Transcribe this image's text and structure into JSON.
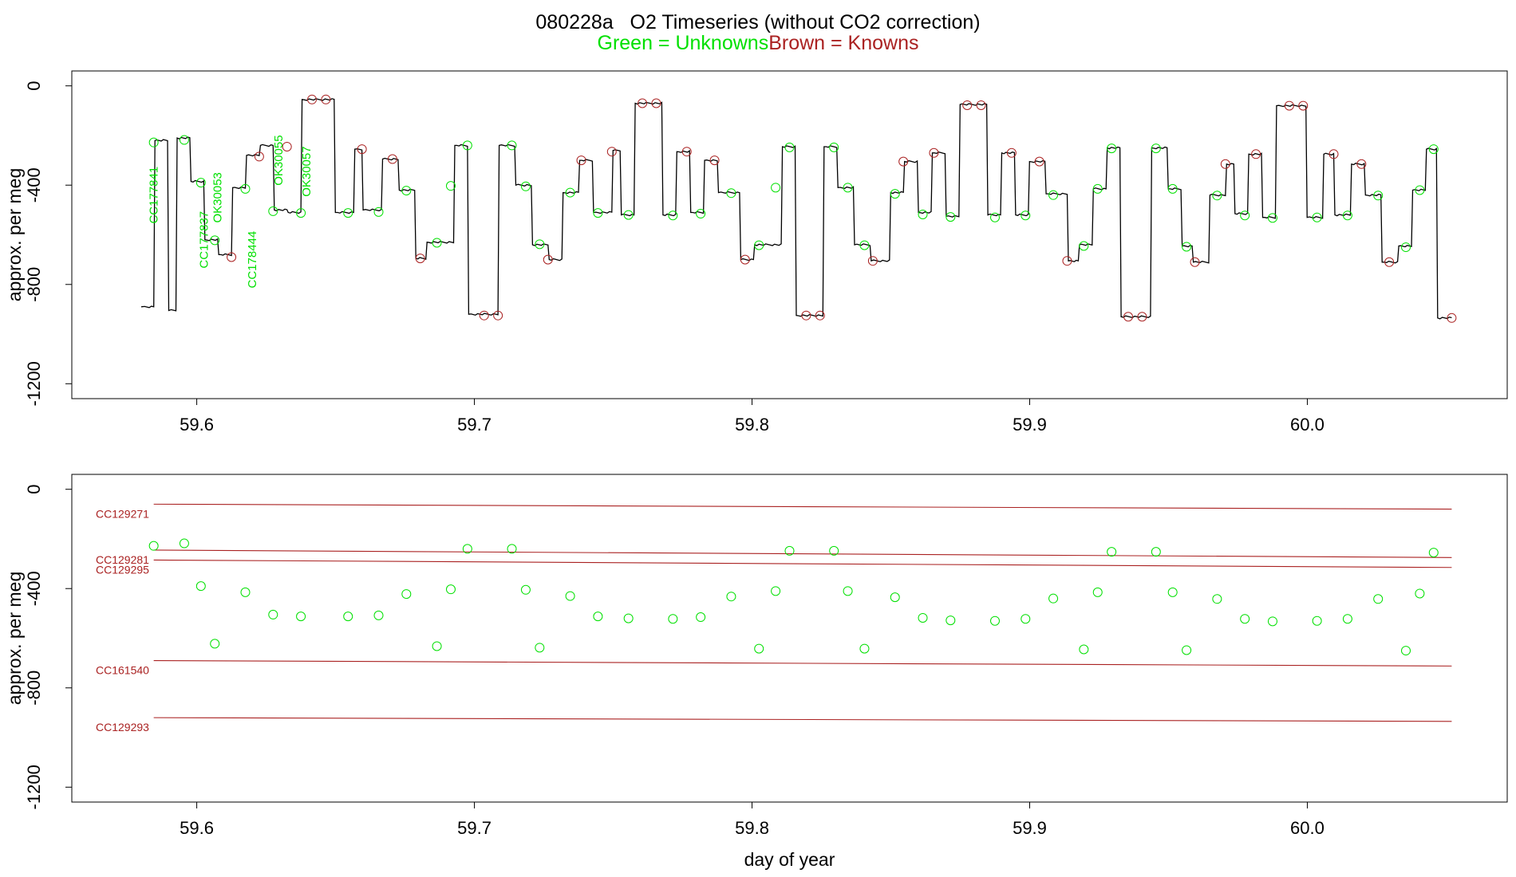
{
  "title": "080228a   O2 Timeseries (without CO2 correction)",
  "subtitle_green": "Green = Unknowns",
  "subtitle_brown": "Brown = Knowns",
  "colors": {
    "unknown": "#00e000",
    "known": "#aa2222",
    "trace": "#000000"
  },
  "chart_data": [
    {
      "type": "line",
      "name": "top-panel",
      "xlabel": "",
      "ylabel": "approx. per meg",
      "xlim": [
        59.555,
        60.072
      ],
      "ylim": [
        -1260,
        60
      ],
      "x_ticks": [
        59.6,
        59.7,
        59.8,
        59.9,
        60.0
      ],
      "x_tick_labels": [
        "59.6",
        "59.7",
        "59.8",
        "59.9",
        "60.0"
      ],
      "y_ticks": [
        0,
        -400,
        -800,
        -1200
      ],
      "y_tick_labels": [
        "0",
        "-400",
        "-800",
        "-1200"
      ],
      "trace_steps": [
        [
          59.58,
          59.5845,
          -890
        ],
        [
          59.5845,
          59.5895,
          -220
        ],
        [
          59.5895,
          59.5925,
          -905
        ],
        [
          59.5925,
          59.5975,
          -210
        ],
        [
          59.5975,
          59.6025,
          -385
        ],
        [
          59.6025,
          59.6075,
          -620
        ],
        [
          59.6075,
          59.6125,
          -680
        ],
        [
          59.6125,
          59.6175,
          -410
        ],
        [
          59.6175,
          59.6225,
          -280
        ],
        [
          59.6225,
          59.6275,
          -240
        ],
        [
          59.6275,
          59.6325,
          -500
        ],
        [
          59.6325,
          59.6375,
          -510
        ],
        [
          59.6375,
          59.6495,
          -55
        ],
        [
          59.6495,
          59.6565,
          -510
        ],
        [
          59.6565,
          59.6595,
          -255
        ],
        [
          59.6595,
          59.6665,
          -500
        ],
        [
          59.6665,
          59.6725,
          -295
        ],
        [
          59.6725,
          59.6785,
          -420
        ],
        [
          59.6785,
          59.6825,
          -695
        ],
        [
          59.6825,
          59.6925,
          -630
        ],
        [
          59.6925,
          59.6975,
          -240
        ],
        [
          59.6975,
          59.7085,
          -920
        ],
        [
          59.7085,
          59.7145,
          -240
        ],
        [
          59.7145,
          59.7205,
          -400
        ],
        [
          59.7205,
          59.7265,
          -640
        ],
        [
          59.7265,
          59.7315,
          -700
        ],
        [
          59.7315,
          59.7375,
          -430
        ],
        [
          59.7375,
          59.7425,
          -300
        ],
        [
          59.7425,
          59.7495,
          -510
        ],
        [
          59.7495,
          59.7525,
          -260
        ],
        [
          59.7525,
          59.7575,
          -520
        ],
        [
          59.7575,
          59.7675,
          -70
        ],
        [
          59.7675,
          59.7725,
          -520
        ],
        [
          59.7725,
          59.7775,
          -265
        ],
        [
          59.7775,
          59.7825,
          -510
        ],
        [
          59.7825,
          59.7875,
          -300
        ],
        [
          59.7875,
          59.7955,
          -430
        ],
        [
          59.7955,
          59.8005,
          -700
        ],
        [
          59.8005,
          59.8105,
          -640
        ],
        [
          59.8105,
          59.8155,
          -245
        ],
        [
          59.8155,
          59.8255,
          -925
        ],
        [
          59.8255,
          59.8305,
          -245
        ],
        [
          59.8305,
          59.8365,
          -410
        ],
        [
          59.8365,
          59.8425,
          -640
        ],
        [
          59.8425,
          59.8495,
          -705
        ],
        [
          59.8495,
          59.8545,
          -430
        ],
        [
          59.8545,
          59.8595,
          -305
        ],
        [
          59.8595,
          59.8645,
          -510
        ],
        [
          59.8645,
          59.8695,
          -270
        ],
        [
          59.8695,
          59.8745,
          -525
        ],
        [
          59.8745,
          59.8845,
          -75
        ],
        [
          59.8845,
          59.8895,
          -520
        ],
        [
          59.8895,
          59.8945,
          -270
        ],
        [
          59.8945,
          59.8995,
          -520
        ],
        [
          59.8995,
          59.9055,
          -305
        ],
        [
          59.9055,
          59.9135,
          -435
        ],
        [
          59.9135,
          59.9175,
          -705
        ],
        [
          59.9175,
          59.9225,
          -640
        ],
        [
          59.9225,
          59.9275,
          -415
        ],
        [
          59.9275,
          59.9325,
          -250
        ],
        [
          59.9325,
          59.9435,
          -930
        ],
        [
          59.9435,
          59.9495,
          -250
        ],
        [
          59.9495,
          59.9545,
          -415
        ],
        [
          59.9545,
          59.9585,
          -645
        ],
        [
          59.9585,
          59.9645,
          -710
        ],
        [
          59.9645,
          59.9705,
          -440
        ],
        [
          59.9705,
          59.9735,
          -315
        ],
        [
          59.9735,
          59.9785,
          -515
        ],
        [
          59.9785,
          59.9835,
          -275
        ],
        [
          59.9835,
          59.9885,
          -530
        ],
        [
          59.9885,
          59.9995,
          -80
        ],
        [
          59.9995,
          60.0055,
          -530
        ],
        [
          60.0055,
          60.0095,
          -275
        ],
        [
          60.0095,
          60.0155,
          -520
        ],
        [
          60.0155,
          60.0205,
          -315
        ],
        [
          60.0205,
          60.0265,
          -440
        ],
        [
          60.0265,
          60.0325,
          -710
        ],
        [
          60.0325,
          60.0375,
          -645
        ],
        [
          60.0375,
          60.0425,
          -420
        ],
        [
          60.0425,
          60.0465,
          -255
        ],
        [
          60.0465,
          60.052,
          -935
        ]
      ],
      "unknown_points": [
        [
          59.5845,
          -228
        ],
        [
          59.5955,
          -218
        ],
        [
          59.6015,
          -390
        ],
        [
          59.6065,
          -622
        ],
        [
          59.6175,
          -415
        ],
        [
          59.6275,
          -505
        ],
        [
          59.6375,
          -512
        ],
        [
          59.6545,
          -512
        ],
        [
          59.6655,
          -508
        ],
        [
          59.6755,
          -422
        ],
        [
          59.6865,
          -632
        ],
        [
          59.6915,
          -403
        ],
        [
          59.6975,
          -240
        ],
        [
          59.7135,
          -240
        ],
        [
          59.7185,
          -405
        ],
        [
          59.7235,
          -638
        ],
        [
          59.7345,
          -430
        ],
        [
          59.7445,
          -512
        ],
        [
          59.7555,
          -520
        ],
        [
          59.7715,
          -522
        ],
        [
          59.7815,
          -515
        ],
        [
          59.7925,
          -432
        ],
        [
          59.8025,
          -642
        ],
        [
          59.8085,
          -410
        ],
        [
          59.8135,
          -248
        ],
        [
          59.8295,
          -248
        ],
        [
          59.8345,
          -410
        ],
        [
          59.8405,
          -642
        ],
        [
          59.8515,
          -435
        ],
        [
          59.8615,
          -518
        ],
        [
          59.8715,
          -528
        ],
        [
          59.8875,
          -530
        ],
        [
          59.8985,
          -522
        ],
        [
          59.9085,
          -440
        ],
        [
          59.9195,
          -645
        ],
        [
          59.9245,
          -415
        ],
        [
          59.9295,
          -252
        ],
        [
          59.9455,
          -252
        ],
        [
          59.9515,
          -415
        ],
        [
          59.9565,
          -648
        ],
        [
          59.9675,
          -442
        ],
        [
          59.9775,
          -522
        ],
        [
          59.9875,
          -532
        ],
        [
          60.0035,
          -530
        ],
        [
          60.0145,
          -522
        ],
        [
          60.0255,
          -442
        ],
        [
          60.0355,
          -650
        ],
        [
          60.0405,
          -420
        ],
        [
          60.0455,
          -255
        ]
      ],
      "known_points": [
        [
          59.6125,
          -690
        ],
        [
          59.6225,
          -285
        ],
        [
          59.6325,
          -245
        ],
        [
          59.6415,
          -55
        ],
        [
          59.6465,
          -55
        ],
        [
          59.6595,
          -255
        ],
        [
          59.6705,
          -295
        ],
        [
          59.6805,
          -695
        ],
        [
          59.7035,
          -925
        ],
        [
          59.7085,
          -925
        ],
        [
          59.7265,
          -700
        ],
        [
          59.7385,
          -300
        ],
        [
          59.7495,
          -265
        ],
        [
          59.7605,
          -70
        ],
        [
          59.7655,
          -70
        ],
        [
          59.7765,
          -265
        ],
        [
          59.7865,
          -300
        ],
        [
          59.7975,
          -700
        ],
        [
          59.8195,
          -925
        ],
        [
          59.8245,
          -925
        ],
        [
          59.8435,
          -705
        ],
        [
          59.8545,
          -305
        ],
        [
          59.8655,
          -270
        ],
        [
          59.8775,
          -78
        ],
        [
          59.8825,
          -78
        ],
        [
          59.8935,
          -270
        ],
        [
          59.9035,
          -305
        ],
        [
          59.9135,
          -705
        ],
        [
          59.9355,
          -930
        ],
        [
          59.9405,
          -930
        ],
        [
          59.9595,
          -710
        ],
        [
          59.9705,
          -315
        ],
        [
          59.9815,
          -275
        ],
        [
          59.9935,
          -80
        ],
        [
          59.9985,
          -80
        ],
        [
          60.0095,
          -275
        ],
        [
          60.0195,
          -315
        ],
        [
          60.0295,
          -710
        ],
        [
          60.052,
          -935
        ]
      ],
      "annotations": [
        {
          "label": "CC177841",
          "x": 59.5845,
          "y": -440
        },
        {
          "label": "CC177837",
          "x": 59.6025,
          "y": -620
        },
        {
          "label": "OK30053",
          "x": 59.6075,
          "y": -450
        },
        {
          "label": "CC178444",
          "x": 59.62,
          "y": -700
        },
        {
          "label": "OK30055",
          "x": 59.6295,
          "y": -300
        },
        {
          "label": "OK30057",
          "x": 59.6395,
          "y": -345
        }
      ]
    },
    {
      "type": "scatter",
      "name": "bottom-panel",
      "xlabel": "day of year",
      "ylabel": "approx. per meg",
      "xlim": [
        59.555,
        60.072
      ],
      "ylim": [
        -1260,
        60
      ],
      "x_ticks": [
        59.6,
        59.7,
        59.8,
        59.9,
        60.0
      ],
      "x_tick_labels": [
        "59.6",
        "59.7",
        "59.8",
        "59.9",
        "60.0"
      ],
      "y_ticks": [
        0,
        -400,
        -800,
        -1200
      ],
      "y_tick_labels": [
        "0",
        "-400",
        "-800",
        "-1200"
      ],
      "reference_lines": [
        {
          "label": "CC129271",
          "y_start": -60,
          "y_end": -80
        },
        {
          "label": "CC129281",
          "y_start": -245,
          "y_end": -275
        },
        {
          "label": "CC129295",
          "y_start": -285,
          "y_end": -315
        },
        {
          "label": "CC161540",
          "y_start": -690,
          "y_end": -712
        },
        {
          "label": "CC129293",
          "y_start": -920,
          "y_end": -935
        }
      ],
      "reference_x": [
        59.5845,
        60.052
      ],
      "unknown_points": [
        [
          59.5845,
          -228
        ],
        [
          59.5955,
          -218
        ],
        [
          59.6015,
          -390
        ],
        [
          59.6065,
          -622
        ],
        [
          59.6175,
          -415
        ],
        [
          59.6275,
          -505
        ],
        [
          59.6375,
          -512
        ],
        [
          59.6545,
          -512
        ],
        [
          59.6655,
          -508
        ],
        [
          59.6755,
          -422
        ],
        [
          59.6865,
          -632
        ],
        [
          59.6915,
          -403
        ],
        [
          59.6975,
          -240
        ],
        [
          59.7135,
          -240
        ],
        [
          59.7185,
          -405
        ],
        [
          59.7235,
          -638
        ],
        [
          59.7345,
          -430
        ],
        [
          59.7445,
          -512
        ],
        [
          59.7555,
          -520
        ],
        [
          59.7715,
          -522
        ],
        [
          59.7815,
          -515
        ],
        [
          59.7925,
          -432
        ],
        [
          59.8025,
          -642
        ],
        [
          59.8085,
          -410
        ],
        [
          59.8135,
          -248
        ],
        [
          59.8295,
          -248
        ],
        [
          59.8345,
          -410
        ],
        [
          59.8405,
          -642
        ],
        [
          59.8515,
          -435
        ],
        [
          59.8615,
          -518
        ],
        [
          59.8715,
          -528
        ],
        [
          59.8875,
          -530
        ],
        [
          59.8985,
          -522
        ],
        [
          59.9085,
          -440
        ],
        [
          59.9195,
          -645
        ],
        [
          59.9245,
          -415
        ],
        [
          59.9295,
          -252
        ],
        [
          59.9455,
          -252
        ],
        [
          59.9515,
          -415
        ],
        [
          59.9565,
          -648
        ],
        [
          59.9675,
          -442
        ],
        [
          59.9775,
          -522
        ],
        [
          59.9875,
          -532
        ],
        [
          60.0035,
          -530
        ],
        [
          60.0145,
          -522
        ],
        [
          60.0255,
          -442
        ],
        [
          60.0355,
          -650
        ],
        [
          60.0405,
          -420
        ],
        [
          60.0455,
          -255
        ]
      ]
    }
  ]
}
